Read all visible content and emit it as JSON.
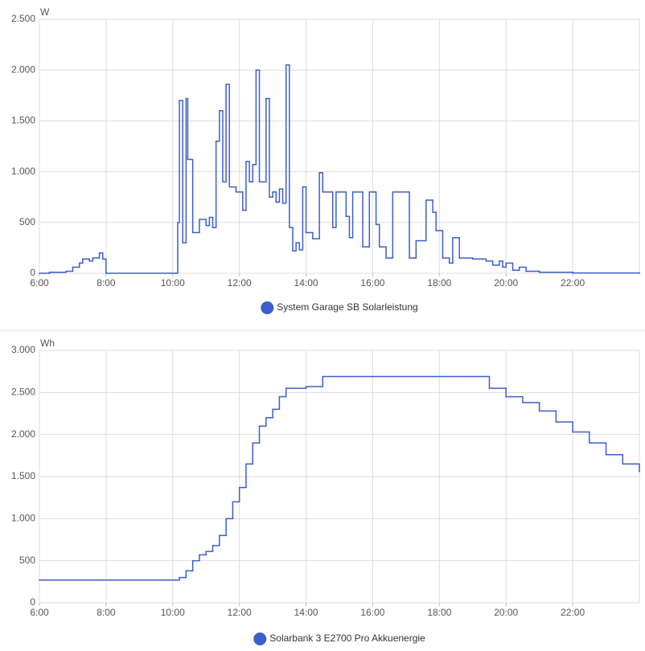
{
  "chart_data": [
    {
      "type": "line",
      "step": true,
      "y_label": "W",
      "x": [
        6.0,
        6.3,
        6.8,
        7.0,
        7.2,
        7.3,
        7.5,
        7.6,
        7.8,
        7.9,
        8.0,
        10.1,
        10.15,
        10.2,
        10.3,
        10.4,
        10.45,
        10.6,
        10.8,
        11.0,
        11.1,
        11.2,
        11.3,
        11.4,
        11.5,
        11.6,
        11.7,
        11.9,
        12.1,
        12.2,
        12.3,
        12.4,
        12.5,
        12.6,
        12.8,
        12.9,
        13.0,
        13.1,
        13.2,
        13.3,
        13.4,
        13.5,
        13.6,
        13.7,
        13.8,
        13.9,
        14.0,
        14.2,
        14.4,
        14.5,
        14.8,
        14.9,
        15.2,
        15.3,
        15.4,
        15.7,
        15.9,
        16.1,
        16.2,
        16.4,
        16.6,
        17.1,
        17.3,
        17.6,
        17.8,
        17.9,
        18.1,
        18.3,
        18.4,
        18.6,
        19.0,
        19.4,
        19.6,
        19.8,
        19.9,
        20.0,
        20.2,
        20.4,
        20.6,
        21.0,
        22.0,
        24.0
      ],
      "series": [
        {
          "name": "System Garage SB Solarleistung",
          "color": "#3c5ecb",
          "values": [
            0,
            10,
            20,
            60,
            100,
            140,
            120,
            150,
            200,
            140,
            0,
            0,
            500,
            1700,
            300,
            1720,
            1120,
            400,
            530,
            470,
            550,
            450,
            1300,
            1600,
            900,
            1860,
            850,
            800,
            620,
            1100,
            900,
            1070,
            2000,
            900,
            1720,
            750,
            800,
            700,
            830,
            690,
            2050,
            450,
            220,
            300,
            230,
            850,
            400,
            340,
            990,
            800,
            450,
            800,
            560,
            350,
            800,
            260,
            800,
            480,
            260,
            150,
            800,
            150,
            320,
            720,
            600,
            420,
            150,
            100,
            350,
            150,
            140,
            120,
            80,
            120,
            60,
            100,
            30,
            60,
            20,
            10,
            3,
            0
          ]
        }
      ],
      "xlim": [
        6,
        24
      ],
      "xticks": [
        {
          "value": 6,
          "label": "6:00"
        },
        {
          "value": 8,
          "label": "8:00"
        },
        {
          "value": 10,
          "label": "10:00"
        },
        {
          "value": 12,
          "label": "12:00"
        },
        {
          "value": 14,
          "label": "14:00"
        },
        {
          "value": 16,
          "label": "16:00"
        },
        {
          "value": 18,
          "label": "18:00"
        },
        {
          "value": 20,
          "label": "20:00"
        },
        {
          "value": 22,
          "label": "22:00"
        }
      ],
      "ylim": [
        0,
        2500
      ],
      "yticks": [
        0,
        500,
        {
          "value": 1000,
          "label": "1.000"
        },
        {
          "value": 1500,
          "label": "1.500"
        },
        {
          "value": 2000,
          "label": "2.000"
        },
        {
          "value": 2500,
          "label": "2.500"
        }
      ],
      "grid": true
    },
    {
      "type": "line",
      "step": true,
      "y_label": "Wh",
      "x": [
        6.0,
        10.1,
        10.2,
        10.4,
        10.6,
        10.8,
        11.0,
        11.2,
        11.4,
        11.6,
        11.8,
        12.0,
        12.2,
        12.4,
        12.6,
        12.8,
        13.0,
        13.2,
        13.4,
        14.0,
        14.5,
        18.8,
        19.5,
        20.0,
        20.5,
        21.0,
        21.5,
        22.0,
        22.5,
        23.0,
        23.5,
        24.0
      ],
      "series": [
        {
          "name": "Solarbank 3 E2700 Pro Akkuenergie",
          "color": "#3c5ecb",
          "values": [
            270,
            270,
            300,
            380,
            500,
            570,
            610,
            680,
            800,
            1000,
            1200,
            1370,
            1650,
            1900,
            2100,
            2200,
            2300,
            2450,
            2550,
            2570,
            2690,
            2690,
            2550,
            2450,
            2380,
            2280,
            2150,
            2030,
            1900,
            1760,
            1650,
            1560
          ]
        }
      ],
      "xlim": [
        6,
        24
      ],
      "xticks": [
        {
          "value": 6,
          "label": "6:00"
        },
        {
          "value": 8,
          "label": "8:00"
        },
        {
          "value": 10,
          "label": "10:00"
        },
        {
          "value": 12,
          "label": "12:00"
        },
        {
          "value": 14,
          "label": "14:00"
        },
        {
          "value": 16,
          "label": "16:00"
        },
        {
          "value": 18,
          "label": "18:00"
        },
        {
          "value": 20,
          "label": "20:00"
        },
        {
          "value": 22,
          "label": "22:00"
        }
      ],
      "ylim": [
        0,
        3000
      ],
      "yticks": [
        0,
        500,
        {
          "value": 1000,
          "label": "1.000"
        },
        {
          "value": 1500,
          "label": "1.500"
        },
        {
          "value": 2000,
          "label": "2.000"
        },
        {
          "value": 2500,
          "label": "2.500"
        },
        {
          "value": 3000,
          "label": "3.000"
        }
      ],
      "grid": true
    }
  ]
}
